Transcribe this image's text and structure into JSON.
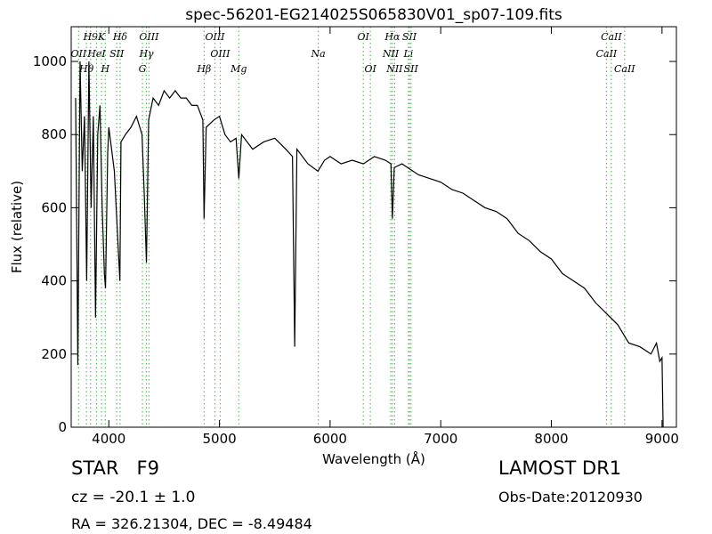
{
  "chart_data": {
    "type": "line",
    "title": "spec-56201-EG214025S065830V01_sp07-109.fits",
    "x_label": "Wavelength (Å)",
    "y_label": "Flux (relative)",
    "xlim": [
      3660,
      9130
    ],
    "ylim": [
      0,
      1095
    ],
    "xticks": [
      4000,
      5000,
      6000,
      7000,
      8000,
      9000
    ],
    "yticks": [
      0,
      200,
      400,
      600,
      800,
      1000
    ],
    "color": "#000000",
    "x": [
      3700,
      3720,
      3740,
      3760,
      3780,
      3800,
      3820,
      3840,
      3860,
      3880,
      3900,
      3920,
      3940,
      3960,
      3970,
      3990,
      4000,
      4050,
      4100,
      4110,
      4150,
      4200,
      4250,
      4300,
      4320,
      4340,
      4360,
      4400,
      4450,
      4500,
      4550,
      4600,
      4650,
      4700,
      4750,
      4800,
      4850,
      4861,
      4880,
      4950,
      5000,
      5050,
      5100,
      5150,
      5175,
      5200,
      5300,
      5400,
      5500,
      5600,
      5660,
      5680,
      5700,
      5800,
      5890,
      5950,
      6000,
      6100,
      6200,
      6300,
      6400,
      6500,
      6550,
      6563,
      6580,
      6650,
      6700,
      6800,
      6900,
      7000,
      7100,
      7200,
      7300,
      7400,
      7500,
      7600,
      7700,
      7800,
      7900,
      8000,
      8100,
      8200,
      8300,
      8400,
      8500,
      8600,
      8700,
      8800,
      8900,
      8950,
      8980,
      9000,
      9010
    ],
    "values": [
      900,
      170,
      1000,
      700,
      850,
      400,
      1000,
      600,
      850,
      300,
      800,
      880,
      600,
      420,
      380,
      750,
      820,
      700,
      400,
      780,
      800,
      820,
      850,
      800,
      640,
      450,
      840,
      900,
      880,
      920,
      900,
      920,
      900,
      900,
      880,
      880,
      840,
      570,
      820,
      840,
      850,
      800,
      780,
      790,
      680,
      800,
      760,
      780,
      790,
      760,
      740,
      220,
      760,
      720,
      700,
      730,
      740,
      720,
      730,
      720,
      740,
      730,
      720,
      570,
      710,
      720,
      710,
      690,
      680,
      670,
      650,
      640,
      620,
      600,
      590,
      570,
      530,
      510,
      480,
      460,
      420,
      400,
      380,
      340,
      310,
      280,
      230,
      220,
      200,
      230,
      180,
      190,
      0
    ],
    "spectral_lines": {
      "color": "#66bb66",
      "labels": [
        "H9",
        "K",
        "Hδ",
        "OIII",
        "OIII",
        "OI",
        "Hα",
        "SII",
        "CaII",
        "OII",
        "HeI",
        "SII",
        "Hγ",
        "OIII",
        "Na",
        "NII",
        "Li",
        "CaII",
        "Hθ",
        "H",
        "G",
        "Hβ",
        "Mg",
        "OI",
        "NII",
        "SII",
        "CaII"
      ],
      "wavelengths": [
        3835,
        3934,
        4102,
        4363,
        4959,
        6300,
        6563,
        6717,
        8542,
        3727,
        3889,
        4072,
        4340,
        5007,
        5893,
        6548,
        6708,
        8498,
        3798,
        3968,
        4304,
        4861,
        5175,
        6364,
        6583,
        6731,
        8662
      ]
    },
    "info": {
      "class": "STAR   F9",
      "cz": "cz = -20.1 ± 1.0",
      "coords": "RA = 326.21304, DEC = -8.49484",
      "survey": "LAMOST DR1",
      "obs_date": "Obs-Date:20120930"
    }
  }
}
